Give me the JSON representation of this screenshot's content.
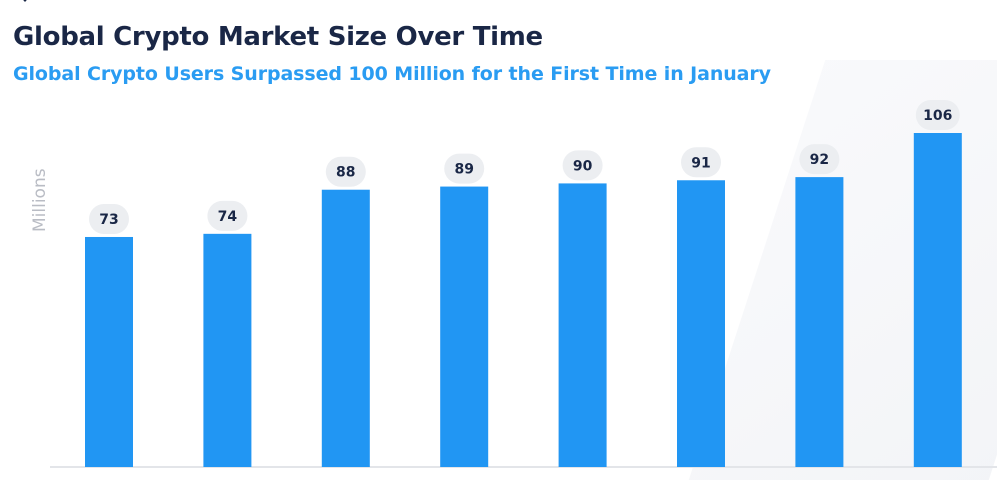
{
  "header": {
    "title": "Global Crypto Market Size Over Time",
    "subtitle": "Global Crypto Users Surpassed 100 Million for the First Time in January"
  },
  "colors": {
    "bar": "#2196f3",
    "title": "#1a2746",
    "subtitle": "#2a9cf2",
    "label_bg": "#eceef1",
    "label_text": "#1a2746",
    "axis_label": "#b9bcc4"
  },
  "chart_data": {
    "type": "bar",
    "categories": [
      "",
      "",
      "",
      "",
      "",
      "",
      "",
      ""
    ],
    "values": [
      73,
      74,
      88,
      89,
      90,
      91,
      92,
      106
    ],
    "data_labels": [
      "73",
      "74",
      "88",
      "89",
      "90",
      "91",
      "92",
      "106"
    ],
    "title": "Global Crypto Market Size Over Time",
    "subtitle": "Global Crypto Users Surpassed 100 Million for the First Time in January",
    "xlabel": "",
    "ylabel": "Millions",
    "ylim": [
      0,
      106
    ],
    "grid": false,
    "legend": "none"
  }
}
